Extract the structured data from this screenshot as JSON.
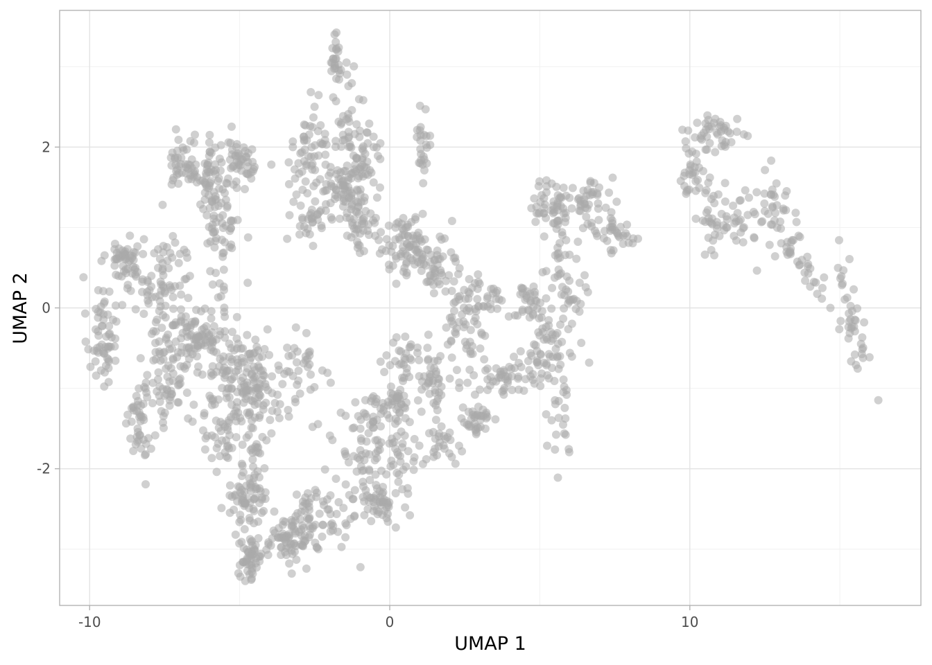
{
  "chart_data": {
    "type": "scatter",
    "title": "",
    "xlabel": "UMAP 1",
    "ylabel": "UMAP 2",
    "xlim": [
      -11.0,
      17.7
    ],
    "ylim": [
      -3.7,
      3.7
    ],
    "x_ticks": [
      -10,
      0,
      10
    ],
    "y_ticks": [
      -2,
      0,
      2
    ],
    "x_tick_labels": [
      "-10",
      "0",
      "10"
    ],
    "y_tick_labels": [
      "-2",
      "0",
      "2"
    ],
    "grid": true,
    "point_color": "#a9a9a9",
    "point_opacity": 0.55,
    "legend": "none",
    "clusters": [
      {
        "cx": -9.6,
        "cy": -0.3,
        "sx": 0.25,
        "sy": 0.35,
        "n": 60
      },
      {
        "cx": -8.8,
        "cy": 0.6,
        "sx": 0.3,
        "sy": 0.15,
        "n": 50
      },
      {
        "cx": -8.3,
        "cy": -1.4,
        "sx": 0.2,
        "sy": 0.3,
        "n": 45
      },
      {
        "cx": -7.5,
        "cy": 0.2,
        "sx": 0.5,
        "sy": 0.4,
        "n": 90
      },
      {
        "cx": -7.3,
        "cy": -0.9,
        "sx": 0.35,
        "sy": 0.3,
        "n": 60
      },
      {
        "cx": -6.5,
        "cy": -0.4,
        "sx": 0.45,
        "sy": 0.2,
        "n": 70
      },
      {
        "cx": -6.8,
        "cy": 1.8,
        "sx": 0.3,
        "sy": 0.15,
        "n": 40
      },
      {
        "cx": -6.0,
        "cy": 1.6,
        "sx": 0.35,
        "sy": 0.25,
        "n": 55
      },
      {
        "cx": -5.6,
        "cy": 1.1,
        "sx": 0.3,
        "sy": 0.25,
        "n": 45
      },
      {
        "cx": -5.0,
        "cy": 1.8,
        "sx": 0.4,
        "sy": 0.15,
        "n": 50
      },
      {
        "cx": -5.6,
        "cy": -0.2,
        "sx": 0.3,
        "sy": 0.5,
        "n": 45
      },
      {
        "cx": -4.7,
        "cy": -0.9,
        "sx": 0.45,
        "sy": 0.25,
        "n": 110
      },
      {
        "cx": -5.6,
        "cy": -1.4,
        "sx": 0.3,
        "sy": 0.35,
        "n": 45
      },
      {
        "cx": -4.5,
        "cy": -1.6,
        "sx": 0.3,
        "sy": 0.4,
        "n": 50
      },
      {
        "cx": -4.8,
        "cy": -2.4,
        "sx": 0.35,
        "sy": 0.15,
        "n": 55
      },
      {
        "cx": -4.6,
        "cy": -3.1,
        "sx": 0.2,
        "sy": 0.15,
        "n": 50
      },
      {
        "cx": -3.4,
        "cy": -2.9,
        "sx": 0.35,
        "sy": 0.15,
        "n": 70
      },
      {
        "cx": -2.5,
        "cy": -2.6,
        "sx": 0.5,
        "sy": 0.25,
        "n": 55
      },
      {
        "cx": -2.8,
        "cy": -0.8,
        "sx": 0.4,
        "sy": 0.25,
        "n": 40
      },
      {
        "cx": -2.7,
        "cy": 1.9,
        "sx": 0.3,
        "sy": 0.35,
        "n": 50
      },
      {
        "cx": -2.8,
        "cy": 1.2,
        "sx": 0.25,
        "sy": 0.2,
        "n": 30
      },
      {
        "cx": -1.8,
        "cy": 3.1,
        "sx": 0.1,
        "sy": 0.2,
        "n": 25
      },
      {
        "cx": -1.4,
        "cy": 2.4,
        "sx": 0.2,
        "sy": 0.25,
        "n": 30
      },
      {
        "cx": -1.5,
        "cy": 1.5,
        "sx": 0.45,
        "sy": 0.25,
        "n": 90
      },
      {
        "cx": -0.8,
        "cy": 1.8,
        "sx": 0.25,
        "sy": 0.25,
        "n": 35
      },
      {
        "cx": -1.0,
        "cy": 1.0,
        "sx": 0.3,
        "sy": 0.2,
        "n": 35
      },
      {
        "cx": -1.2,
        "cy": -2.0,
        "sx": 0.4,
        "sy": 0.4,
        "n": 40
      },
      {
        "cx": -0.5,
        "cy": -1.5,
        "sx": 0.3,
        "sy": 0.25,
        "n": 40
      },
      {
        "cx": -0.3,
        "cy": -2.4,
        "sx": 0.3,
        "sy": 0.1,
        "n": 45
      },
      {
        "cx": 0.3,
        "cy": -2.0,
        "sx": 0.3,
        "sy": 0.3,
        "n": 40
      },
      {
        "cx": 0.2,
        "cy": -1.2,
        "sx": 0.3,
        "sy": 0.12,
        "n": 35
      },
      {
        "cx": 0.5,
        "cy": -0.6,
        "sx": 0.3,
        "sy": 0.15,
        "n": 30
      },
      {
        "cx": 0.5,
        "cy": 0.8,
        "sx": 0.5,
        "sy": 0.2,
        "n": 80
      },
      {
        "cx": 1.1,
        "cy": 2.0,
        "sx": 0.15,
        "sy": 0.2,
        "n": 25
      },
      {
        "cx": 1.4,
        "cy": -0.9,
        "sx": 0.25,
        "sy": 0.3,
        "n": 40
      },
      {
        "cx": 1.5,
        "cy": 0.5,
        "sx": 0.4,
        "sy": 0.2,
        "n": 50
      },
      {
        "cx": 1.7,
        "cy": -1.7,
        "sx": 0.3,
        "sy": 0.15,
        "n": 25
      },
      {
        "cx": 2.5,
        "cy": -0.5,
        "sx": 0.35,
        "sy": 0.4,
        "n": 45
      },
      {
        "cx": 2.9,
        "cy": -1.4,
        "sx": 0.35,
        "sy": 0.1,
        "n": 35
      },
      {
        "cx": 3.0,
        "cy": 0.1,
        "sx": 0.5,
        "sy": 0.15,
        "n": 40
      },
      {
        "cx": 3.5,
        "cy": -0.9,
        "sx": 0.3,
        "sy": 0.1,
        "n": 25
      },
      {
        "cx": 4.5,
        "cy": -0.8,
        "sx": 0.5,
        "sy": 0.12,
        "n": 30
      },
      {
        "cx": 4.6,
        "cy": 0.05,
        "sx": 0.3,
        "sy": 0.12,
        "n": 30
      },
      {
        "cx": 5.2,
        "cy": -0.4,
        "sx": 0.3,
        "sy": 0.3,
        "n": 40
      },
      {
        "cx": 5.7,
        "cy": -1.3,
        "sx": 0.2,
        "sy": 0.25,
        "n": 25
      },
      {
        "cx": 6.0,
        "cy": 0.1,
        "sx": 0.3,
        "sy": 0.35,
        "n": 40
      },
      {
        "cx": 5.3,
        "cy": 1.3,
        "sx": 0.45,
        "sy": 0.15,
        "n": 45
      },
      {
        "cx": 5.6,
        "cy": 0.7,
        "sx": 0.2,
        "sy": 0.2,
        "n": 20
      },
      {
        "cx": 6.7,
        "cy": 1.3,
        "sx": 0.5,
        "sy": 0.2,
        "n": 45
      },
      {
        "cx": 7.7,
        "cy": 0.9,
        "sx": 0.35,
        "sy": 0.1,
        "n": 30
      },
      {
        "cx": 10.2,
        "cy": 1.6,
        "sx": 0.25,
        "sy": 0.15,
        "n": 30
      },
      {
        "cx": 10.9,
        "cy": 2.2,
        "sx": 0.45,
        "sy": 0.12,
        "n": 45
      },
      {
        "cx": 10.7,
        "cy": 1.0,
        "sx": 0.25,
        "sy": 0.2,
        "n": 30
      },
      {
        "cx": 11.6,
        "cy": 1.1,
        "sx": 0.35,
        "sy": 0.15,
        "n": 25
      },
      {
        "cx": 12.7,
        "cy": 1.2,
        "sx": 0.35,
        "sy": 0.3,
        "n": 35
      },
      {
        "cx": 13.8,
        "cy": 0.6,
        "sx": 0.5,
        "sy": 0.18,
        "n": 35,
        "slope": -0.5
      },
      {
        "cx": 15.5,
        "cy": -0.2,
        "sx": 0.3,
        "sy": 0.25,
        "n": 40,
        "slope": -1.1
      }
    ]
  }
}
